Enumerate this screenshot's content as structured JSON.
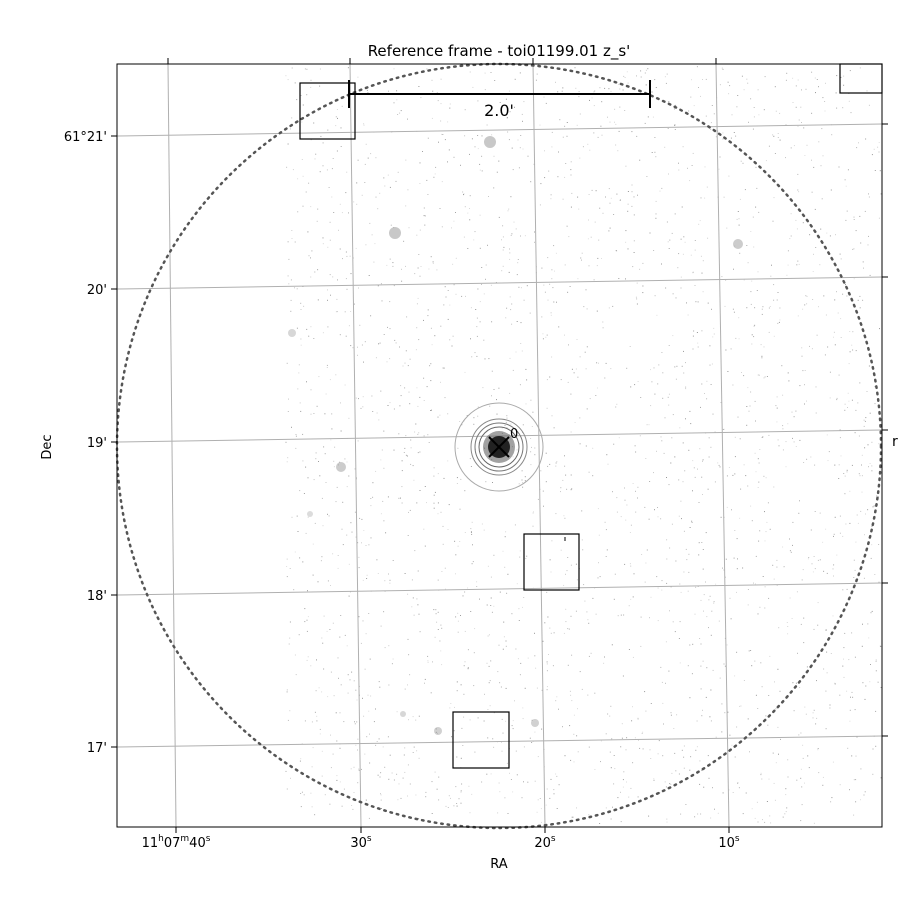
{
  "chart_data": {
    "type": "scatter",
    "title": "Reference frame - toi01199.01 z_s'",
    "xlabel": "RA",
    "ylabel": "Dec",
    "grid": true,
    "x_ticks": [
      {
        "label_main": "11",
        "sup1": "h",
        "mid": "07",
        "sup2": "m",
        "end": "40",
        "sup3": "s",
        "value_s": 40
      },
      {
        "label_main": "30",
        "sup1": "s",
        "value_s": 30
      },
      {
        "label_main": "20",
        "sup1": "s",
        "value_s": 20
      },
      {
        "label_main": "10",
        "sup1": "s",
        "value_s": 10
      }
    ],
    "y_ticks": [
      {
        "label": "61°21'",
        "value_arcmin": 21
      },
      {
        "label": "20'",
        "value_arcmin": 20
      },
      {
        "label": "19'",
        "value_arcmin": 19
      },
      {
        "label": "18'",
        "value_arcmin": 18
      },
      {
        "label": "17'",
        "value_arcmin": 17
      }
    ],
    "scale_bar_label": "2.0'",
    "target_label": "0",
    "right_edge_label": "r",
    "field_circle": {
      "style": "dotted",
      "color": "#555555"
    },
    "comparison_boxes": [
      {
        "ra_s": 32.5,
        "dec_arcmin": 21.15
      },
      {
        "ra_s": 19.7,
        "dec_arcmin": 18.2
      },
      {
        "ra_s": 23.6,
        "dec_arcmin": 17.05
      },
      {
        "ra_s": 4.2,
        "dec_arcmin": 21.4
      }
    ]
  }
}
